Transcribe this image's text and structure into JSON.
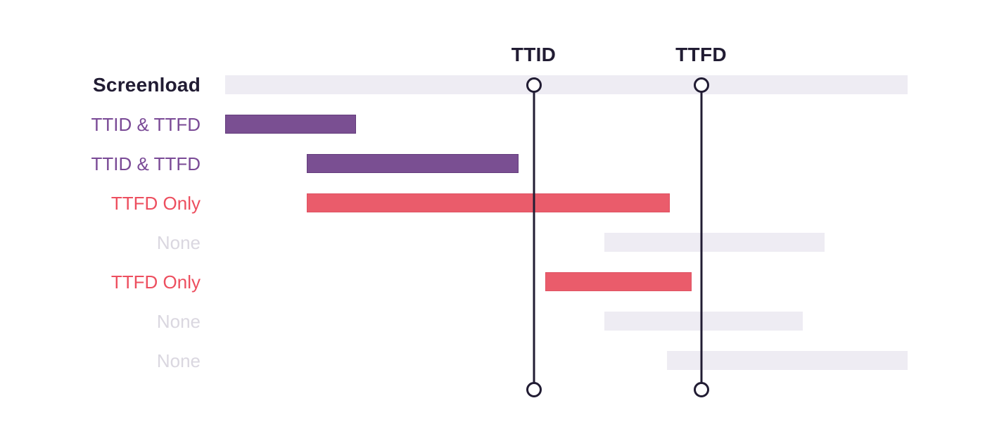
{
  "diagram": {
    "background": "#ffffff",
    "colors": {
      "track": "#eeecf3",
      "purple": "#7a4f92",
      "red": "#ea5c6b",
      "dark": "#211c33",
      "purple_text": "#7a4a96",
      "red_text": "#ed4f5f",
      "muted_text": "#dad7e0"
    },
    "markers": [
      {
        "id": "ttid",
        "label": "TTID",
        "x": 758.5
      },
      {
        "id": "ttfd",
        "label": "TTFD",
        "x": 996.5
      }
    ],
    "rows": [
      {
        "label": "Screenload",
        "label_style": "title",
        "label_color": "dark",
        "bar": {
          "start": 320,
          "end": 1290,
          "color": "track"
        }
      },
      {
        "label": "TTID & TTFD",
        "label_style": "normal",
        "label_color": "purple_text",
        "bar": {
          "start": 320,
          "end": 506,
          "color": "purple"
        }
      },
      {
        "label": "TTID & TTFD",
        "label_style": "normal",
        "label_color": "purple_text",
        "bar": {
          "start": 436,
          "end": 737,
          "color": "purple"
        }
      },
      {
        "label": "TTFD Only",
        "label_style": "normal",
        "label_color": "red_text",
        "bar": {
          "start": 436,
          "end": 952,
          "color": "red"
        }
      },
      {
        "label": "None",
        "label_style": "normal",
        "label_color": "muted_text",
        "bar": {
          "start": 859,
          "end": 1172,
          "color": "track"
        }
      },
      {
        "label": "TTFD Only",
        "label_style": "normal",
        "label_color": "red_text",
        "bar": {
          "start": 775,
          "end": 983,
          "color": "red"
        }
      },
      {
        "label": "None",
        "label_style": "normal",
        "label_color": "muted_text",
        "bar": {
          "start": 859,
          "end": 1141,
          "color": "track"
        }
      },
      {
        "label": "None",
        "label_style": "normal",
        "label_color": "muted_text",
        "bar": {
          "start": 948,
          "end": 1290,
          "color": "track"
        }
      }
    ]
  }
}
